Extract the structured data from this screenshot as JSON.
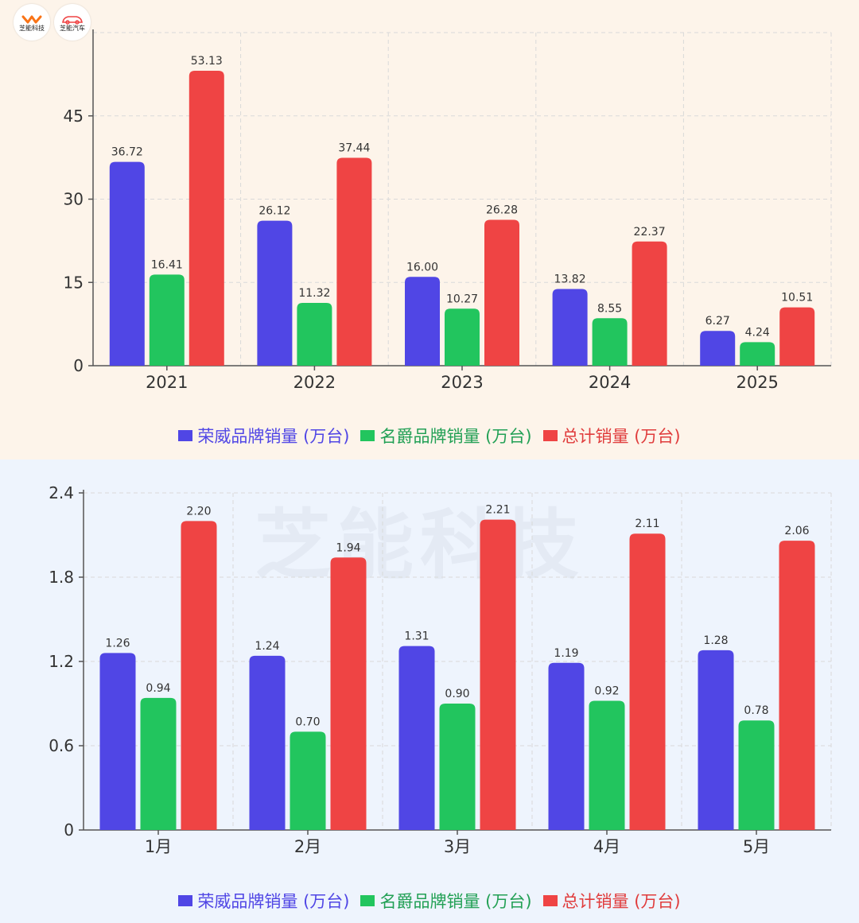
{
  "logos": {
    "left_text": "芝能科技",
    "right_text": "芝能汽车"
  },
  "watermark": "芝能科技",
  "colors": {
    "roewe": "#5046e5",
    "mg": "#22c55e",
    "total": "#ef4444"
  },
  "chart_data": [
    {
      "type": "bar",
      "categories": [
        "2021",
        "2022",
        "2023",
        "2024",
        "2025"
      ],
      "series": [
        {
          "name": "荣威品牌销量 (万台)",
          "values": [
            36.72,
            26.12,
            16.0,
            13.82,
            6.27
          ]
        },
        {
          "name": "名爵品牌销量 (万台)",
          "values": [
            16.41,
            11.32,
            10.27,
            8.55,
            4.24
          ]
        },
        {
          "name": "总计销量 (万台)",
          "values": [
            53.13,
            37.44,
            26.28,
            22.37,
            10.51
          ]
        }
      ],
      "ylim": [
        0,
        60
      ],
      "yticks": [
        0,
        15,
        30,
        45
      ],
      "value_labels": [
        [
          "36.72",
          "26.12",
          "16.00",
          "13.82",
          "6.27"
        ],
        [
          "16.41",
          "11.32",
          "10.27",
          "8.55",
          "4.24"
        ],
        [
          "53.13",
          "37.44",
          "26.28",
          "22.37",
          "10.51"
        ]
      ],
      "grid": true,
      "legend": "bottom"
    },
    {
      "type": "bar",
      "categories": [
        "1月",
        "2月",
        "3月",
        "4月",
        "5月"
      ],
      "series": [
        {
          "name": "荣威品牌销量 (万台)",
          "values": [
            1.26,
            1.24,
            1.31,
            1.19,
            1.28
          ]
        },
        {
          "name": "名爵品牌销量 (万台)",
          "values": [
            0.94,
            0.7,
            0.9,
            0.92,
            0.78
          ]
        },
        {
          "name": "总计销量 (万台)",
          "values": [
            2.2,
            1.94,
            2.21,
            2.11,
            2.06
          ]
        }
      ],
      "ylim": [
        0,
        2.4
      ],
      "yticks": [
        0,
        0.6,
        1.2,
        1.8,
        2.4
      ],
      "ytick_labels": [
        "0",
        "0.6",
        "1.2",
        "1.8",
        "2.4"
      ],
      "value_labels": [
        [
          "1.26",
          "1.24",
          "1.31",
          "1.19",
          "1.28"
        ],
        [
          "0.94",
          "0.70",
          "0.90",
          "0.92",
          "0.78"
        ],
        [
          "2.20",
          "1.94",
          "2.21",
          "2.11",
          "2.06"
        ]
      ],
      "grid": true,
      "legend": "bottom"
    }
  ]
}
